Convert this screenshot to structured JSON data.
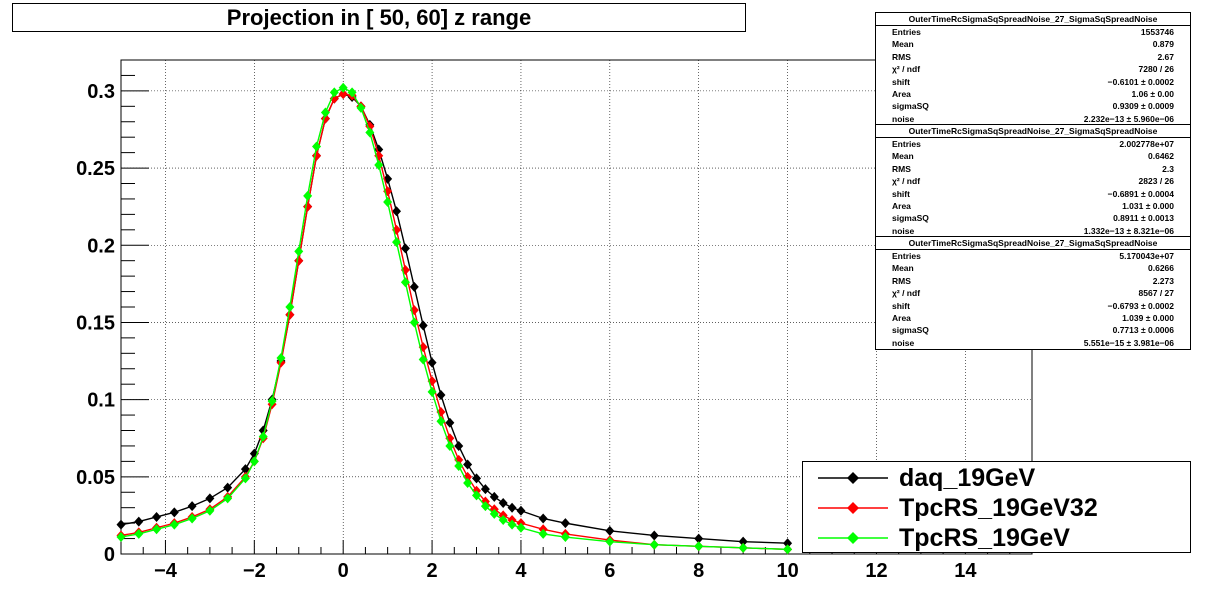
{
  "chart_data": {
    "type": "scatter",
    "title": "Projection in [  50,  60] z range",
    "xlim": [
      -5,
      15.5
    ],
    "ylim": [
      0,
      0.32
    ],
    "x_ticks": [
      -4,
      -2,
      0,
      2,
      4,
      6,
      8,
      10,
      12,
      14
    ],
    "x_tick_labels": [
      "−4",
      "−2",
      "0",
      "2",
      "4",
      "6",
      "8",
      "10",
      "12",
      "14"
    ],
    "y_ticks": [
      0,
      0.05,
      0.1,
      0.15,
      0.2,
      0.25,
      0.3
    ],
    "y_tick_labels": [
      "0",
      "0.05",
      "0.1",
      "0.15",
      "0.2",
      "0.25",
      "0.3"
    ],
    "grid": true,
    "legend_position": "bottom-right",
    "series": [
      {
        "name": "daq_19GeV",
        "color": "#000000",
        "x": [
          -5.0,
          -4.6,
          -4.2,
          -3.8,
          -3.4,
          -3.0,
          -2.6,
          -2.2,
          -2.0,
          -1.8,
          -1.6,
          -1.4,
          -1.2,
          -1.0,
          -0.8,
          -0.6,
          -0.4,
          -0.2,
          0.0,
          0.2,
          0.4,
          0.6,
          0.8,
          1.0,
          1.2,
          1.4,
          1.6,
          1.8,
          2.0,
          2.2,
          2.4,
          2.6,
          2.8,
          3.0,
          3.2,
          3.4,
          3.6,
          3.8,
          4.0,
          4.5,
          5.0,
          6.0,
          7.0,
          8.0,
          9.0,
          10.0
        ],
        "y": [
          0.019,
          0.021,
          0.024,
          0.027,
          0.031,
          0.036,
          0.043,
          0.055,
          0.065,
          0.08,
          0.1,
          0.125,
          0.155,
          0.19,
          0.225,
          0.258,
          0.282,
          0.295,
          0.298,
          0.296,
          0.29,
          0.278,
          0.262,
          0.243,
          0.222,
          0.198,
          0.173,
          0.148,
          0.124,
          0.103,
          0.085,
          0.07,
          0.058,
          0.049,
          0.042,
          0.037,
          0.033,
          0.03,
          0.028,
          0.023,
          0.02,
          0.015,
          0.012,
          0.01,
          0.008,
          0.007
        ]
      },
      {
        "name": "TpcRS_19GeV32",
        "color": "#ff0000",
        "x": [
          -5.0,
          -4.6,
          -4.2,
          -3.8,
          -3.4,
          -3.0,
          -2.6,
          -2.2,
          -2.0,
          -1.8,
          -1.6,
          -1.4,
          -1.2,
          -1.0,
          -0.8,
          -0.6,
          -0.4,
          -0.2,
          0.0,
          0.2,
          0.4,
          0.6,
          0.8,
          1.0,
          1.2,
          1.4,
          1.6,
          1.8,
          2.0,
          2.2,
          2.4,
          2.6,
          2.8,
          3.0,
          3.2,
          3.4,
          3.6,
          3.8,
          4.0,
          4.5,
          5.0,
          6.0,
          7.0,
          8.0,
          9.0,
          10.0
        ],
        "y": [
          0.012,
          0.014,
          0.017,
          0.02,
          0.024,
          0.029,
          0.037,
          0.05,
          0.06,
          0.075,
          0.097,
          0.124,
          0.155,
          0.19,
          0.225,
          0.258,
          0.282,
          0.295,
          0.298,
          0.297,
          0.29,
          0.277,
          0.258,
          0.235,
          0.21,
          0.184,
          0.158,
          0.134,
          0.112,
          0.092,
          0.075,
          0.061,
          0.05,
          0.041,
          0.034,
          0.029,
          0.025,
          0.022,
          0.02,
          0.016,
          0.013,
          0.009,
          0.006,
          0.005,
          0.004,
          0.003
        ]
      },
      {
        "name": "TpcRS_19GeV",
        "color": "#00ff00",
        "x": [
          -5.0,
          -4.6,
          -4.2,
          -3.8,
          -3.4,
          -3.0,
          -2.6,
          -2.2,
          -2.0,
          -1.8,
          -1.6,
          -1.4,
          -1.2,
          -1.0,
          -0.8,
          -0.6,
          -0.4,
          -0.2,
          0.0,
          0.2,
          0.4,
          0.6,
          0.8,
          1.0,
          1.2,
          1.4,
          1.6,
          1.8,
          2.0,
          2.2,
          2.4,
          2.6,
          2.8,
          3.0,
          3.2,
          3.4,
          3.6,
          3.8,
          4.0,
          4.5,
          5.0,
          6.0,
          7.0,
          8.0,
          9.0,
          10.0
        ],
        "y": [
          0.011,
          0.013,
          0.016,
          0.019,
          0.023,
          0.028,
          0.036,
          0.049,
          0.06,
          0.076,
          0.099,
          0.127,
          0.16,
          0.196,
          0.232,
          0.264,
          0.286,
          0.299,
          0.302,
          0.299,
          0.289,
          0.273,
          0.252,
          0.228,
          0.202,
          0.176,
          0.15,
          0.126,
          0.105,
          0.086,
          0.07,
          0.057,
          0.046,
          0.038,
          0.031,
          0.026,
          0.022,
          0.019,
          0.017,
          0.013,
          0.011,
          0.008,
          0.006,
          0.005,
          0.004,
          0.003
        ]
      }
    ],
    "stats_boxes": [
      {
        "name": "OuterTimeRcSigmaSqSpreadNoise_27_SigmaSqSpreadNoise",
        "rows": [
          [
            "Entries",
            "1553746"
          ],
          [
            "Mean",
            "0.879"
          ],
          [
            "RMS",
            "2.67"
          ],
          [
            "χ² / ndf",
            "7280 / 26"
          ],
          [
            "shift",
            "−0.6101 ± 0.0002"
          ],
          [
            "Area",
            "1.06 ± 0.00"
          ],
          [
            "sigmaSQ",
            "0.9309 ± 0.0009"
          ],
          [
            "noise",
            "2.232e−13 ± 5.960e−06"
          ]
        ]
      },
      {
        "name": "OuterTimeRcSigmaSqSpreadNoise_27_SigmaSqSpreadNoise",
        "rows": [
          [
            "Entries",
            "2.002778e+07"
          ],
          [
            "Mean",
            "0.6462"
          ],
          [
            "RMS",
            "2.3"
          ],
          [
            "χ² / ndf",
            "2823 / 26"
          ],
          [
            "shift",
            "−0.6891 ± 0.0004"
          ],
          [
            "Area",
            "1.031 ± 0.000"
          ],
          [
            "sigmaSQ",
            "0.8911 ± 0.0013"
          ],
          [
            "noise",
            "1.332e−13 ± 8.321e−06"
          ]
        ]
      },
      {
        "name": "OuterTimeRcSigmaSqSpreadNoise_27_SigmaSqSpreadNoise",
        "rows": [
          [
            "Entries",
            "5.170043e+07"
          ],
          [
            "Mean",
            "0.6266"
          ],
          [
            "RMS",
            "2.273"
          ],
          [
            "χ² / ndf",
            "8567 / 27"
          ],
          [
            "shift",
            "−0.6793 ± 0.0002"
          ],
          [
            "Area",
            "1.039 ± 0.000"
          ],
          [
            "sigmaSQ",
            "0.7713 ± 0.0006"
          ],
          [
            "noise",
            "5.551e−15 ± 3.981e−06"
          ]
        ]
      }
    ]
  }
}
